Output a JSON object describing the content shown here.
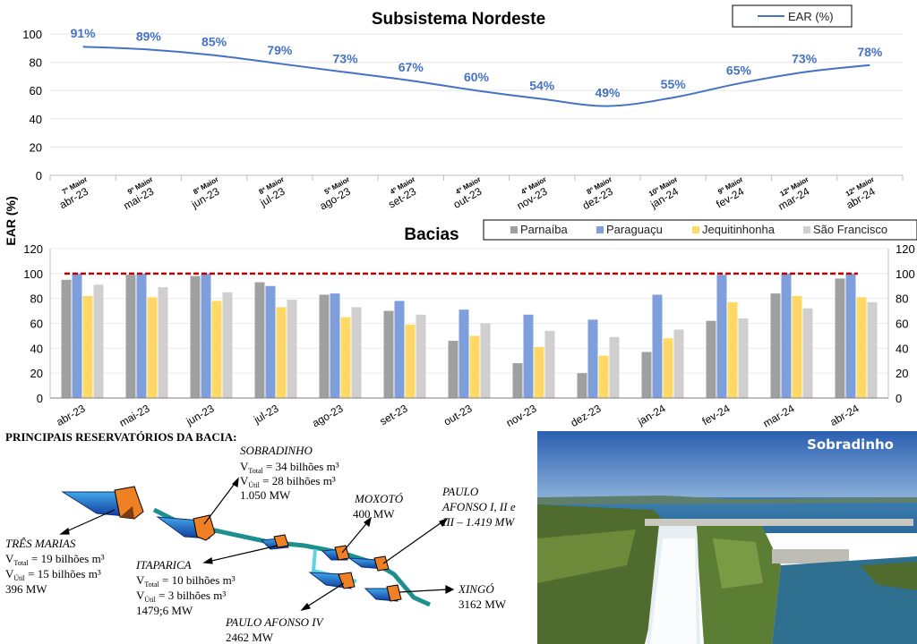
{
  "chart_data": [
    {
      "type": "line",
      "title": "Subsistema Nordeste",
      "ylabel": "EAR (%)",
      "ylim": [
        0,
        100
      ],
      "yticks": [
        0,
        20,
        40,
        60,
        80,
        100
      ],
      "categories": [
        "abr-23",
        "mai-23",
        "jun-23",
        "jul-23",
        "ago-23",
        "set-23",
        "out-23",
        "nov-23",
        "dez-23",
        "jan-24",
        "fev-24",
        "mar-24",
        "abr-24"
      ],
      "rank_labels": [
        "7º Maior",
        "9º Maior",
        "8º Maior",
        "8º Maior",
        "5º Maior",
        "4º Maior",
        "4º Maior",
        "4º Maior",
        "8º Maior",
        "10º Maior",
        "9º Maior",
        "12º Maior",
        "12º Maior"
      ],
      "series": [
        {
          "name": "EAR (%)",
          "values": [
            91,
            89,
            85,
            79,
            73,
            67,
            60,
            54,
            49,
            55,
            65,
            73,
            78
          ]
        }
      ],
      "data_labels": [
        "91%",
        "89%",
        "85%",
        "79%",
        "73%",
        "67%",
        "60%",
        "54%",
        "49%",
        "55%",
        "65%",
        "73%",
        "78%"
      ],
      "legend": "top-right"
    },
    {
      "type": "bar",
      "title": "Bacias",
      "ylim": [
        0,
        120
      ],
      "yticks": [
        0,
        20,
        40,
        60,
        80,
        100,
        120
      ],
      "reference_line": 100,
      "categories": [
        "abr-23",
        "mai-23",
        "jun-23",
        "jul-23",
        "ago-23",
        "set-23",
        "out-23",
        "nov-23",
        "dez-23",
        "jan-24",
        "fev-24",
        "mar-24",
        "abr-24"
      ],
      "series": [
        {
          "name": "Parnaíba",
          "color": "#a0a0a0",
          "values": [
            95,
            99,
            98,
            93,
            83,
            70,
            46,
            28,
            20,
            37,
            62,
            84,
            96
          ]
        },
        {
          "name": "Paraguaçu",
          "color": "#7f9fdc",
          "values": [
            100,
            100,
            100,
            90,
            84,
            78,
            71,
            67,
            63,
            83,
            99,
            100,
            100
          ]
        },
        {
          "name": "Jequitinhonha",
          "color": "#ffd966",
          "values": [
            82,
            81,
            78,
            73,
            65,
            59,
            50,
            41,
            34,
            48,
            77,
            82,
            81
          ]
        },
        {
          "name": "São Francisco",
          "color": "#d0cece",
          "values": [
            91,
            89,
            85,
            79,
            73,
            67,
            60,
            54,
            49,
            55,
            64,
            72,
            77
          ]
        }
      ],
      "legend": "top-right"
    }
  ],
  "schematic": {
    "heading": "PRINCIPAIS RESERVATÓRIOS DA BACIA:",
    "sobradinho": {
      "name": "SOBRADINHO",
      "vtotal": "34 bilhões m³",
      "vutil": "28 bilhões m³",
      "power": "1.050 MW"
    },
    "tres_marias": {
      "name": "TRÊS MARIAS",
      "vtotal": "19 bilhões m³",
      "vutil": "15 bilhões m³",
      "power": "396 MW"
    },
    "itaparica": {
      "name": "ITAPARICA",
      "vtotal": "10 bilhões m³",
      "vutil": "3 bilhões m³",
      "power": "1479;6 MW"
    },
    "moxoto": {
      "name": "MOXOTÓ",
      "power": "400 MW"
    },
    "paulo_afonso": {
      "line1": "PAULO",
      "line2": "AFONSO I, II e",
      "line3": "III – 1.419 MW"
    },
    "paulo_afonso_iv": {
      "name": "PAULO AFONSO IV",
      "power": "2462 MW"
    },
    "xingo": {
      "name": "XINGÓ",
      "power": "3162 MW"
    },
    "v_letter": "V",
    "sub_total": "Total",
    "sub_util": "Útil"
  },
  "photo": {
    "title": "Sobradinho"
  },
  "colors": {
    "line": "#4472c4",
    "ref_line": "#c00000",
    "grid": "#d9d9d9"
  }
}
